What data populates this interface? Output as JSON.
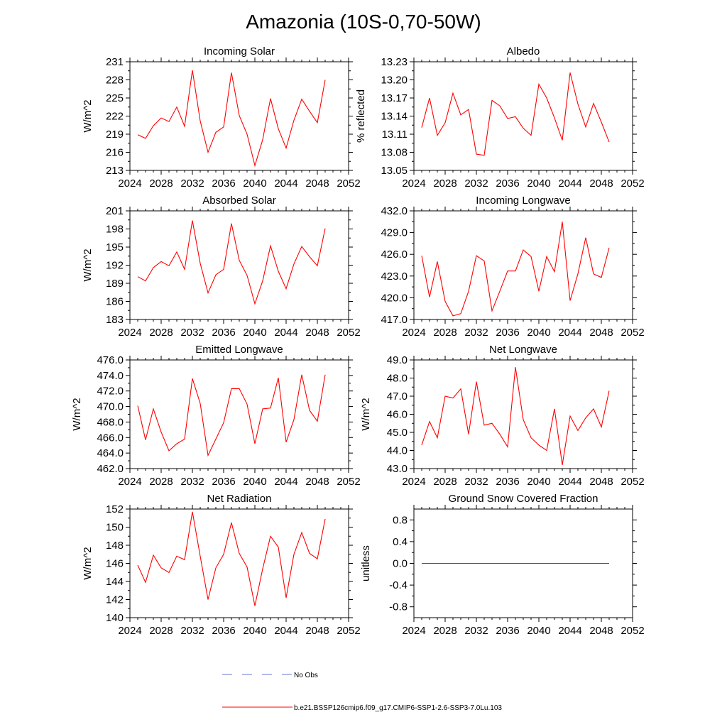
{
  "title": "Amazonia (10S-0,70-50W)",
  "series_color": "#ff0000",
  "obs_color": "#6677cc",
  "panels": [
    {
      "id": "incoming-solar",
      "title": "Incoming Solar",
      "ylabel": "W/m^2",
      "ylim": [
        213,
        231
      ],
      "yticks": [
        213,
        216,
        219,
        222,
        225,
        228,
        231
      ],
      "ytick_labels": [
        "213",
        "216",
        "219",
        "222",
        "225",
        "228",
        "231"
      ],
      "xlim": [
        2024,
        2052
      ],
      "xticks": [
        2024,
        2028,
        2032,
        2036,
        2040,
        2044,
        2048,
        2052
      ],
      "x": [
        2025,
        2026,
        2027,
        2028,
        2029,
        2030,
        2031,
        2032,
        2033,
        2034,
        2035,
        2036,
        2037,
        2038,
        2039,
        2040,
        2041,
        2042,
        2043,
        2044,
        2045,
        2046,
        2047,
        2048,
        2049
      ],
      "y": [
        218.9,
        218.3,
        220.4,
        221.7,
        221.1,
        223.5,
        220.3,
        229.6,
        221.2,
        216.0,
        219.3,
        220.2,
        229.2,
        222.1,
        219.0,
        213.8,
        218.1,
        224.9,
        219.9,
        216.7,
        221.3,
        224.8,
        222.8,
        220.9,
        228.0
      ]
    },
    {
      "id": "albedo",
      "title": "Albedo",
      "ylabel": "% reflected",
      "ylim": [
        13.05,
        13.23
      ],
      "yticks": [
        13.05,
        13.08,
        13.11,
        13.14,
        13.17,
        13.2,
        13.23
      ],
      "ytick_labels": [
        "13.05",
        "13.08",
        "13.11",
        "13.14",
        "13.17",
        "13.20",
        "13.23"
      ],
      "xlim": [
        2024,
        2052
      ],
      "xticks": [
        2024,
        2028,
        2032,
        2036,
        2040,
        2044,
        2048,
        2052
      ],
      "x": [
        2025,
        2026,
        2027,
        2028,
        2029,
        2030,
        2031,
        2032,
        2033,
        2034,
        2035,
        2036,
        2037,
        2038,
        2039,
        2040,
        2041,
        2042,
        2043,
        2044,
        2045,
        2046,
        2047,
        2048,
        2049
      ],
      "y": [
        13.121,
        13.17,
        13.108,
        13.129,
        13.178,
        13.142,
        13.151,
        13.077,
        13.075,
        13.166,
        13.157,
        13.136,
        13.139,
        13.12,
        13.108,
        13.193,
        13.17,
        13.137,
        13.1,
        13.212,
        13.16,
        13.122,
        13.161,
        13.13,
        13.097
      ]
    },
    {
      "id": "absorbed-solar",
      "title": "Absorbed Solar",
      "ylabel": "W/m^2",
      "ylim": [
        183,
        201
      ],
      "yticks": [
        183,
        186,
        189,
        192,
        195,
        198,
        201
      ],
      "ytick_labels": [
        "183",
        "186",
        "189",
        "192",
        "195",
        "198",
        "201"
      ],
      "xlim": [
        2024,
        2052
      ],
      "xticks": [
        2024,
        2028,
        2032,
        2036,
        2040,
        2044,
        2048,
        2052
      ],
      "x": [
        2025,
        2026,
        2027,
        2028,
        2029,
        2030,
        2031,
        2032,
        2033,
        2034,
        2035,
        2036,
        2037,
        2038,
        2039,
        2040,
        2041,
        2042,
        2043,
        2044,
        2045,
        2046,
        2047,
        2048,
        2049
      ],
      "y": [
        190.1,
        189.4,
        191.6,
        192.6,
        191.9,
        194.2,
        191.3,
        199.4,
        192.3,
        187.4,
        190.4,
        191.3,
        198.9,
        192.8,
        190.3,
        185.6,
        189.4,
        195.2,
        191.0,
        188.1,
        192.2,
        195.1,
        193.4,
        191.9,
        198.1
      ]
    },
    {
      "id": "incoming-longwave",
      "title": "Incoming Longwave",
      "ylabel": "",
      "ylim": [
        417.0,
        432.0
      ],
      "yticks": [
        417.0,
        420.0,
        423.0,
        426.0,
        429.0,
        432.0
      ],
      "ytick_labels": [
        "417.0",
        "420.0",
        "423.0",
        "426.0",
        "429.0",
        "432.0"
      ],
      "xlim": [
        2024,
        2052
      ],
      "xticks": [
        2024,
        2028,
        2032,
        2036,
        2040,
        2044,
        2048,
        2052
      ],
      "x": [
        2025,
        2026,
        2027,
        2028,
        2029,
        2030,
        2031,
        2032,
        2033,
        2034,
        2035,
        2036,
        2037,
        2038,
        2039,
        2040,
        2041,
        2042,
        2043,
        2044,
        2045,
        2046,
        2047,
        2048,
        2049
      ],
      "y": [
        425.8,
        420.1,
        425.0,
        419.5,
        417.5,
        417.8,
        420.9,
        425.8,
        425.1,
        418.2,
        420.9,
        423.7,
        423.7,
        426.6,
        425.7,
        420.9,
        425.7,
        423.6,
        430.5,
        419.6,
        423.3,
        428.3,
        423.3,
        422.8,
        426.9
      ]
    },
    {
      "id": "emitted-longwave",
      "title": "Emitted Longwave",
      "ylabel": "W/m^2",
      "ylim": [
        462.0,
        476.0
      ],
      "yticks": [
        462.0,
        464.0,
        466.0,
        468.0,
        470.0,
        472.0,
        474.0,
        476.0
      ],
      "ytick_labels": [
        "462.0",
        "464.0",
        "466.0",
        "468.0",
        "470.0",
        "472.0",
        "474.0",
        "476.0"
      ],
      "xlim": [
        2024,
        2052
      ],
      "xticks": [
        2024,
        2028,
        2032,
        2036,
        2040,
        2044,
        2048,
        2052
      ],
      "x": [
        2025,
        2026,
        2027,
        2028,
        2029,
        2030,
        2031,
        2032,
        2033,
        2034,
        2035,
        2036,
        2037,
        2038,
        2039,
        2040,
        2041,
        2042,
        2043,
        2044,
        2045,
        2046,
        2047,
        2048,
        2049
      ],
      "y": [
        470.1,
        465.7,
        469.7,
        466.7,
        464.3,
        465.2,
        465.8,
        473.6,
        470.4,
        463.7,
        465.8,
        467.9,
        472.3,
        472.3,
        470.3,
        465.2,
        469.7,
        469.8,
        473.7,
        465.4,
        468.3,
        474.1,
        469.5,
        468.1,
        474.1
      ]
    },
    {
      "id": "net-longwave",
      "title": "Net Longwave",
      "ylabel": "W/m^2",
      "ylim": [
        43.0,
        49.0
      ],
      "yticks": [
        43.0,
        44.0,
        45.0,
        46.0,
        47.0,
        48.0,
        49.0
      ],
      "ytick_labels": [
        "43.0",
        "44.0",
        "45.0",
        "46.0",
        "47.0",
        "48.0",
        "49.0"
      ],
      "xlim": [
        2024,
        2052
      ],
      "xticks": [
        2024,
        2028,
        2032,
        2036,
        2040,
        2044,
        2048,
        2052
      ],
      "x": [
        2025,
        2026,
        2027,
        2028,
        2029,
        2030,
        2031,
        2032,
        2033,
        2034,
        2035,
        2036,
        2037,
        2038,
        2039,
        2040,
        2041,
        2042,
        2043,
        2044,
        2045,
        2046,
        2047,
        2048,
        2049
      ],
      "y": [
        44.3,
        45.6,
        44.7,
        47.0,
        46.9,
        47.4,
        44.9,
        47.8,
        45.4,
        45.5,
        44.9,
        44.2,
        48.6,
        45.7,
        44.7,
        44.3,
        44.0,
        46.3,
        43.2,
        45.9,
        45.1,
        45.8,
        46.3,
        45.3,
        47.3
      ]
    },
    {
      "id": "net-radiation",
      "title": "Net Radiation",
      "ylabel": "W/m^2",
      "ylim": [
        140,
        152
      ],
      "yticks": [
        140,
        142,
        144,
        146,
        148,
        150,
        152
      ],
      "ytick_labels": [
        "140",
        "142",
        "144",
        "146",
        "148",
        "150",
        "152"
      ],
      "xlim": [
        2024,
        2052
      ],
      "xticks": [
        2024,
        2028,
        2032,
        2036,
        2040,
        2044,
        2048,
        2052
      ],
      "x": [
        2025,
        2026,
        2027,
        2028,
        2029,
        2030,
        2031,
        2032,
        2033,
        2034,
        2035,
        2036,
        2037,
        2038,
        2039,
        2040,
        2041,
        2042,
        2043,
        2044,
        2045,
        2046,
        2047,
        2048,
        2049
      ],
      "y": [
        145.8,
        143.9,
        146.9,
        145.5,
        145.0,
        146.8,
        146.4,
        151.7,
        146.8,
        142.0,
        145.5,
        147.0,
        150.5,
        147.1,
        145.6,
        141.3,
        145.4,
        149.0,
        147.8,
        142.2,
        147.0,
        149.4,
        147.1,
        146.5,
        150.9
      ]
    },
    {
      "id": "ground-snow",
      "title": "Ground Snow Covered Fraction",
      "ylabel": "unitless",
      "ylim": [
        -1.0,
        1.0
      ],
      "yticks": [
        -0.8,
        -0.4,
        0.0,
        0.4,
        0.8
      ],
      "ytick_labels": [
        "-0.8",
        "-0.4",
        "0.0",
        "0.4",
        "0.8"
      ],
      "xlim": [
        2024,
        2052
      ],
      "xticks": [
        2024,
        2028,
        2032,
        2036,
        2040,
        2044,
        2048,
        2052
      ],
      "x": [
        2025,
        2049
      ],
      "y": [
        0.0,
        0.0
      ]
    }
  ],
  "legend": {
    "obs_label": "No Obs",
    "model_label": "b.e21.BSSP126cmip6.f09_g17.CMIP6-SSP1-2.6-SSP3-7.0Lu.103"
  },
  "chart_data": [
    {
      "type": "line",
      "title": "Incoming Solar",
      "ylabel": "W/m^2",
      "ylim": [
        213,
        231
      ],
      "xlim": [
        2024,
        2052
      ]
    },
    {
      "type": "line",
      "title": "Albedo",
      "ylabel": "% reflected",
      "ylim": [
        13.05,
        13.23
      ],
      "xlim": [
        2024,
        2052
      ]
    },
    {
      "type": "line",
      "title": "Absorbed Solar",
      "ylabel": "W/m^2",
      "ylim": [
        183,
        201
      ],
      "xlim": [
        2024,
        2052
      ]
    },
    {
      "type": "line",
      "title": "Incoming Longwave",
      "ylim": [
        417.0,
        432.0
      ],
      "xlim": [
        2024,
        2052
      ]
    },
    {
      "type": "line",
      "title": "Emitted Longwave",
      "ylabel": "W/m^2",
      "ylim": [
        462.0,
        476.0
      ],
      "xlim": [
        2024,
        2052
      ]
    },
    {
      "type": "line",
      "title": "Net Longwave",
      "ylabel": "W/m^2",
      "ylim": [
        43.0,
        49.0
      ],
      "xlim": [
        2024,
        2052
      ]
    },
    {
      "type": "line",
      "title": "Net Radiation",
      "ylabel": "W/m^2",
      "ylim": [
        140,
        152
      ],
      "xlim": [
        2024,
        2052
      ]
    },
    {
      "type": "line",
      "title": "Ground Snow Covered Fraction",
      "ylabel": "unitless",
      "ylim": [
        -1.0,
        1.0
      ],
      "xlim": [
        2024,
        2052
      ]
    }
  ]
}
